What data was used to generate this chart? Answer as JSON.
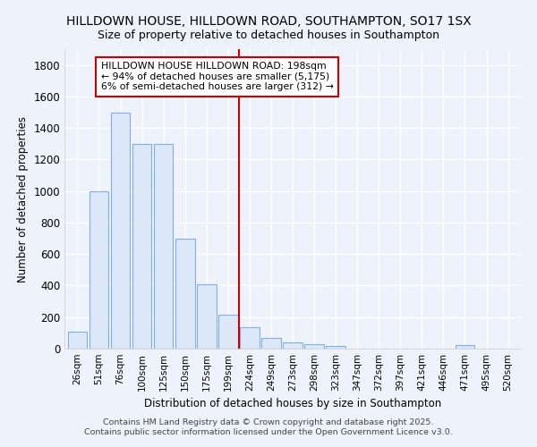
{
  "title": "HILLDOWN HOUSE, HILLDOWN ROAD, SOUTHAMPTON, SO17 1SX",
  "subtitle": "Size of property relative to detached houses in Southampton",
  "xlabel": "Distribution of detached houses by size in Southampton",
  "ylabel": "Number of detached properties",
  "categories": [
    "26sqm",
    "51sqm",
    "76sqm",
    "100sqm",
    "125sqm",
    "150sqm",
    "175sqm",
    "199sqm",
    "224sqm",
    "249sqm",
    "273sqm",
    "298sqm",
    "323sqm",
    "347sqm",
    "372sqm",
    "397sqm",
    "421sqm",
    "446sqm",
    "471sqm",
    "495sqm",
    "520sqm"
  ],
  "values": [
    110,
    1000,
    1500,
    1300,
    1300,
    700,
    410,
    215,
    135,
    70,
    40,
    30,
    15,
    0,
    0,
    0,
    0,
    0,
    20,
    0,
    0
  ],
  "bar_color": "#dce8f8",
  "bar_edge_color": "#7fb0e0",
  "vline_color": "#cc0000",
  "annotation_text": "HILLDOWN HOUSE HILLDOWN ROAD: 198sqm\n← 94% of detached houses are smaller (5,175)\n6% of semi-detached houses are larger (312) →",
  "annotation_box_color": "#ffffff",
  "annotation_box_edge": "#cc0000",
  "background_color": "#eef2fb",
  "grid_color": "#ffffff",
  "ylim": [
    0,
    1900
  ],
  "yticks": [
    0,
    200,
    400,
    600,
    800,
    1000,
    1200,
    1400,
    1600,
    1800
  ],
  "footer_line1": "Contains HM Land Registry data © Crown copyright and database right 2025.",
  "footer_line2": "Contains public sector information licensed under the Open Government Licence v3.0."
}
